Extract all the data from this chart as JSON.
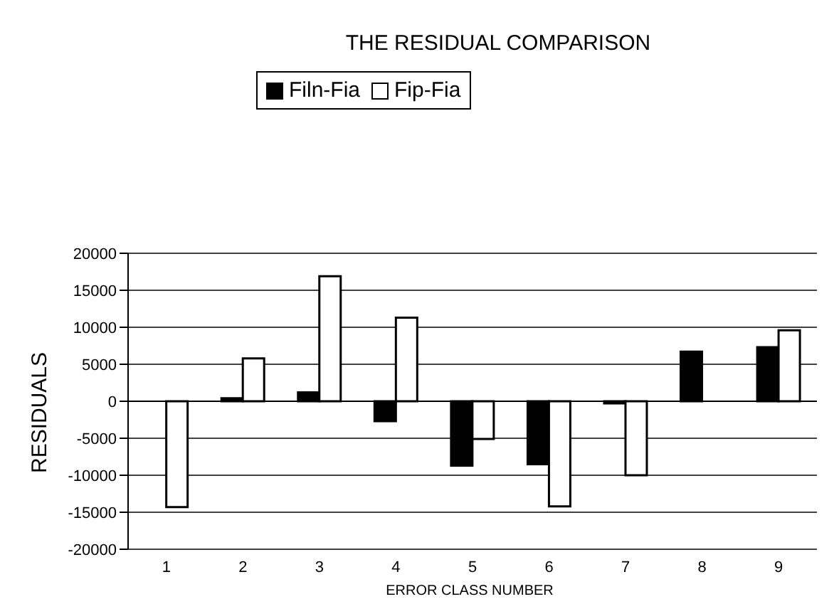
{
  "chart_data": {
    "type": "bar",
    "title": "THE RESIDUAL COMPARISON",
    "xlabel": "ERROR CLASS NUMBER",
    "ylabel": "RESIDUALS",
    "categories": [
      "1",
      "2",
      "3",
      "4",
      "5",
      "6",
      "7",
      "8",
      "9"
    ],
    "series": [
      {
        "name": "Filn-Fia",
        "color": "#000000",
        "values": [
          0,
          400,
          1200,
          -2700,
          -8700,
          -8500,
          -300,
          6700,
          7300
        ]
      },
      {
        "name": "Fip-Fia",
        "color": "#ffffff",
        "values": [
          -14300,
          5800,
          16900,
          11300,
          -5100,
          -14200,
          -10000,
          0,
          9600
        ]
      }
    ],
    "ylim": [
      -20000,
      20000
    ],
    "yticks": [
      -20000,
      -15000,
      -10000,
      -5000,
      0,
      5000,
      10000,
      15000,
      20000
    ],
    "grid": "y",
    "legend": "top left"
  }
}
